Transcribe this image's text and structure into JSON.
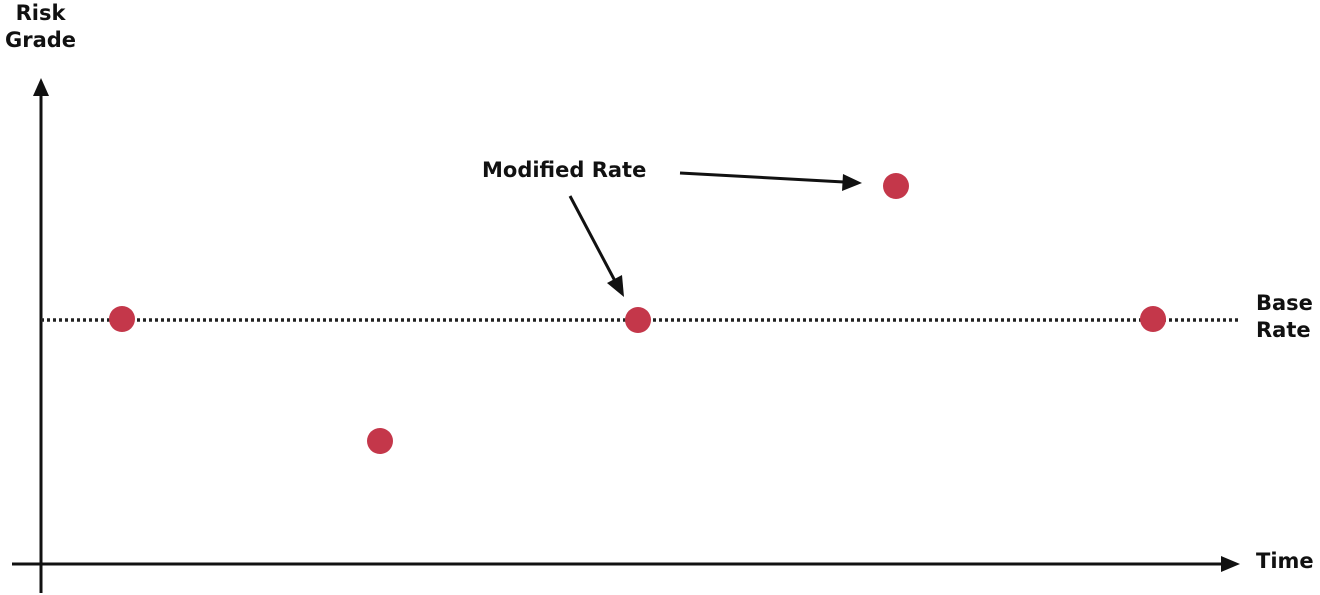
{
  "diagram": {
    "y_axis_label_line1": "Risk",
    "y_axis_label_line2": "Grade",
    "x_axis_label": "Time",
    "base_rate_label_line1": "Base",
    "base_rate_label_line2": "Rate",
    "annotation_label": "Modified Rate"
  },
  "colors": {
    "axis": "#111111",
    "point": "#c4374a",
    "baseline": "#222222"
  }
}
